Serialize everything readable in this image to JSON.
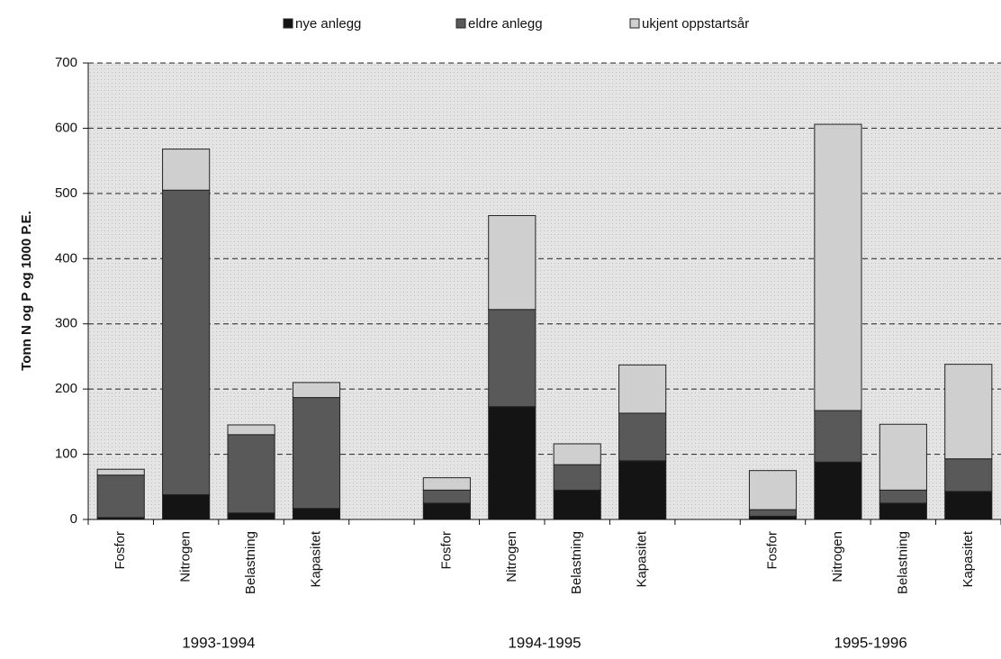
{
  "chart_data": {
    "type": "stacked_bar",
    "y_label": "Tonn N og P og 1000 P.E.",
    "categories": [
      "Fosfor",
      "Nitrogen",
      "Belastning",
      "Kapasitet",
      null,
      "Fosfor",
      "Nitrogen",
      "Belastning",
      "Kapasitet",
      null,
      "Fosfor",
      "Nitrogen",
      "Belastning",
      "Kapasitet"
    ],
    "groups": [
      "1993-1994",
      "1994-1995",
      "1995-1996"
    ],
    "series": [
      {
        "name": "nye anlegg",
        "color": "#141414",
        "values": [
          3,
          38,
          10,
          17,
          null,
          25,
          173,
          45,
          90,
          null,
          5,
          88,
          25,
          43
        ]
      },
      {
        "name": "eldre anlegg",
        "color": "#595959",
        "values": [
          65,
          467,
          120,
          170,
          null,
          20,
          149,
          39,
          73,
          null,
          10,
          79,
          20,
          50
        ]
      },
      {
        "name": "ukjent oppstartsår",
        "color": "#cfcfcf",
        "values": [
          9,
          63,
          15,
          23,
          null,
          19,
          144,
          32,
          74,
          null,
          60,
          439,
          101,
          145
        ]
      }
    ],
    "ylim": [
      0,
      700
    ],
    "yticks": [
      0,
      100,
      200,
      300,
      400,
      500,
      600,
      700
    ],
    "grid": true,
    "legend": "top"
  }
}
